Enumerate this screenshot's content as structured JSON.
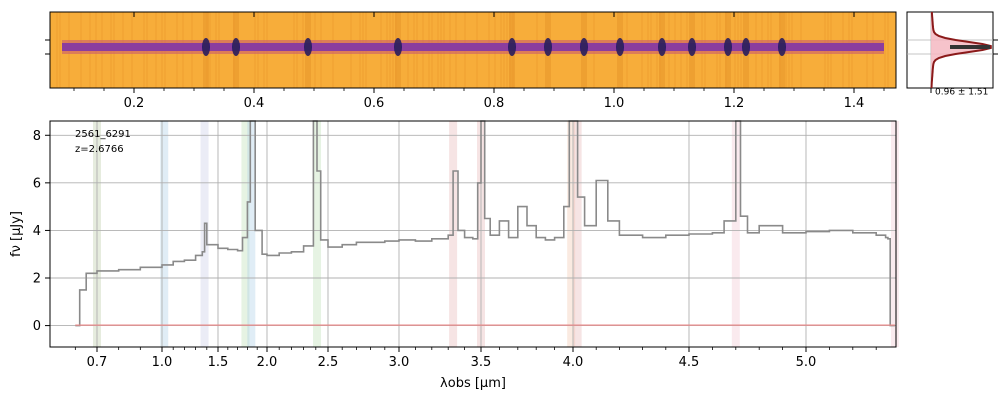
{
  "colors": {
    "spectrum": "#8a8a8a",
    "model": "#e88a8a",
    "grid": "#b0b0b0",
    "image_bg": "#f7ad3a",
    "trace_core": "#8b3d9e",
    "trace_edge": "#c7566f",
    "profile_fill": "#f4b8c2",
    "profile_line": "#8b1a1a",
    "profile_dark": "#333333"
  },
  "chart_data": [
    {
      "type": "image",
      "panel": "2d-spectrum",
      "xlim": [
        0.06,
        1.47
      ],
      "x_ticks": [
        0.2,
        0.4,
        0.6,
        0.8,
        1.0,
        1.2,
        1.4
      ],
      "x_tick_labels": [
        "0.2",
        "0.4",
        "0.6",
        "0.8",
        "1.0",
        "1.2",
        "1.4"
      ],
      "trace_extent": [
        0.08,
        1.45
      ],
      "dark_features": [
        0.32,
        0.37,
        0.49,
        0.64,
        0.83,
        0.89,
        0.95,
        1.01,
        1.08,
        1.13,
        1.19,
        1.22,
        1.28
      ]
    },
    {
      "type": "line",
      "panel": "profile",
      "label": "0.96 ± 1.51"
    },
    {
      "type": "line",
      "panel": "1d-spectrum",
      "annotation": [
        "2561_6291",
        "z=2.6766"
      ],
      "xlabel": "λobs [μm]",
      "ylabel": "fν [μJy]",
      "ylim": [
        -0.9,
        8.6
      ],
      "y_ticks": [
        0,
        2,
        4,
        6,
        8
      ],
      "x_tick_labels": [
        "0.7",
        "1.0",
        "1.5",
        "2.0",
        "2.5",
        "3.0",
        "3.5",
        "4.0",
        "4.5",
        "5.0"
      ],
      "line_markers": [
        {
          "wavelength": 0.7,
          "color": "#b6c9a0"
        },
        {
          "wavelength": 1.02,
          "color": "#a7cbe6"
        },
        {
          "wavelength": 1.38,
          "color": "#c5c8e6"
        },
        {
          "wavelength": 1.78,
          "color": "#b8dcb0"
        },
        {
          "wavelength": 1.84,
          "color": "#a7cbe6"
        },
        {
          "wavelength": 2.41,
          "color": "#b8dcb0"
        },
        {
          "wavelength": 3.33,
          "color": "#e6b3b3"
        },
        {
          "wavelength": 3.5,
          "color": "#e6b3b3"
        },
        {
          "wavelength": 3.99,
          "color": "#f2c3a8"
        },
        {
          "wavelength": 4.02,
          "color": "#e6b3b3"
        },
        {
          "wavelength": 4.7,
          "color": "#f0c2cf"
        },
        {
          "wavelength": 5.38,
          "color": "#f0c2cf"
        }
      ],
      "series": [
        {
          "x": [
            0.6,
            0.62,
            0.65,
            0.7,
            0.8,
            0.9,
            1.0,
            1.1,
            1.2,
            1.3,
            1.36,
            1.38,
            1.4,
            1.5,
            1.6,
            1.7,
            1.75,
            1.8,
            1.83,
            1.85,
            1.88,
            1.95,
            2.0,
            2.1,
            2.2,
            2.3,
            2.38,
            2.41,
            2.44,
            2.5,
            2.6,
            2.7,
            2.8,
            2.9,
            3.0,
            3.1,
            3.2,
            3.3,
            3.33,
            3.36,
            3.4,
            3.45,
            3.48,
            3.5,
            3.52,
            3.55,
            3.6,
            3.65,
            3.7,
            3.75,
            3.8,
            3.85,
            3.9,
            3.95,
            3.98,
            4.0,
            4.02,
            4.05,
            4.1,
            4.15,
            4.2,
            4.3,
            4.4,
            4.5,
            4.6,
            4.65,
            4.7,
            4.72,
            4.75,
            4.8,
            4.9,
            5.0,
            5.1,
            5.2,
            5.3,
            5.34,
            5.35,
            5.36,
            5.38
          ],
          "y": [
            0.0,
            1.5,
            2.2,
            2.3,
            2.35,
            2.45,
            2.55,
            2.7,
            2.75,
            2.95,
            3.1,
            4.3,
            3.4,
            3.25,
            3.2,
            3.15,
            3.7,
            5.2,
            8.6,
            8.6,
            4.0,
            3.0,
            2.95,
            3.05,
            3.1,
            3.35,
            8.6,
            6.5,
            3.6,
            3.3,
            3.4,
            3.5,
            3.5,
            3.55,
            3.6,
            3.55,
            3.65,
            3.8,
            6.5,
            4.0,
            3.7,
            3.65,
            6.0,
            8.6,
            4.5,
            3.8,
            4.4,
            3.7,
            5.0,
            4.2,
            3.7,
            3.6,
            3.7,
            5.0,
            8.6,
            8.6,
            5.4,
            4.2,
            6.1,
            4.4,
            3.8,
            3.7,
            3.8,
            3.85,
            3.9,
            4.4,
            8.6,
            4.6,
            3.9,
            4.2,
            3.9,
            3.95,
            4.0,
            3.9,
            3.8,
            3.7,
            3.65,
            0.0,
            0.0
          ],
          "color": "#8a8a8a"
        },
        {
          "x": [
            0.6,
            5.38
          ],
          "y": [
            0.02,
            0.02
          ],
          "color": "#e88a8a"
        }
      ]
    }
  ]
}
